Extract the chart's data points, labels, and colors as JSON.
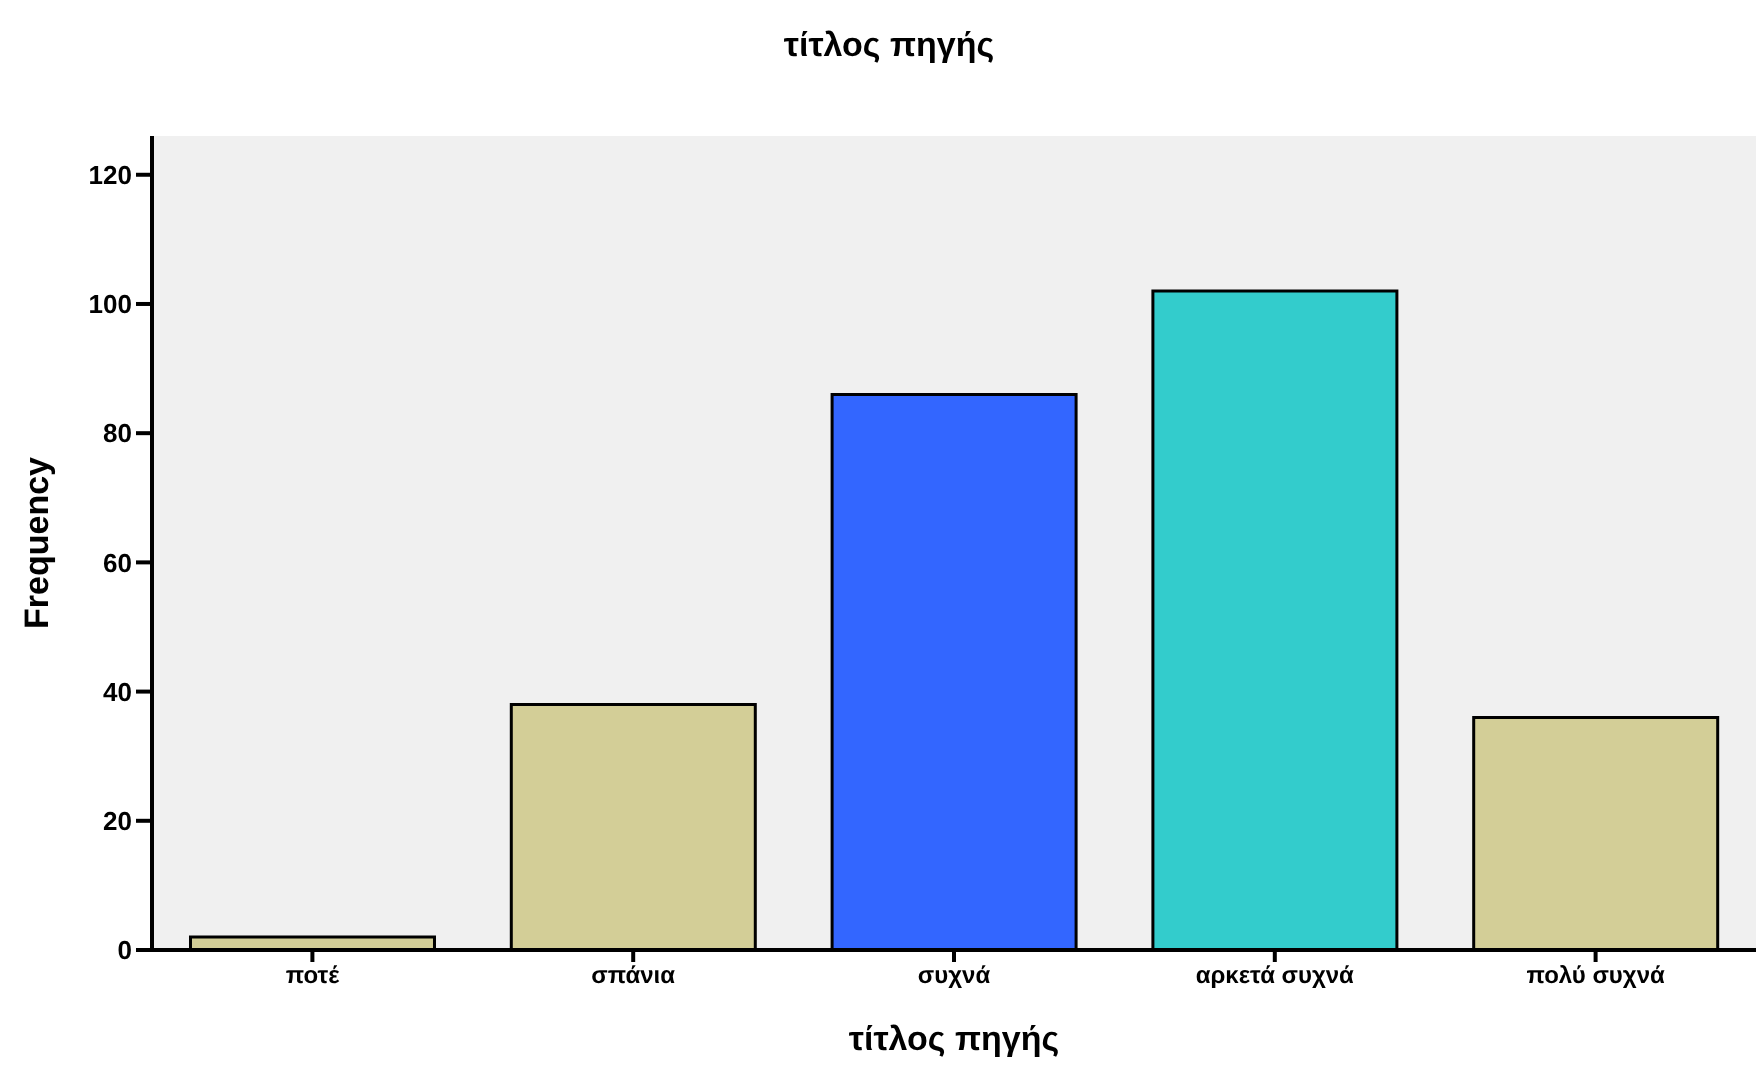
{
  "chart_data": {
    "type": "bar",
    "title": "τίτλος πηγής",
    "xlabel": "τίτλος πηγής",
    "ylabel": "Frequency",
    "categories": [
      "ποτέ",
      "σπάνια",
      "συχνά",
      "αρκετά συχνά",
      "πολύ συχνά"
    ],
    "values": [
      2,
      38,
      86,
      102,
      36
    ],
    "colors": [
      "#d3ce97",
      "#d3ce97",
      "#3366ff",
      "#33cccc",
      "#d3ce97"
    ],
    "ylim": [
      0,
      126
    ],
    "yticks": [
      0,
      20,
      40,
      60,
      80,
      100,
      120
    ],
    "grid": false
  }
}
